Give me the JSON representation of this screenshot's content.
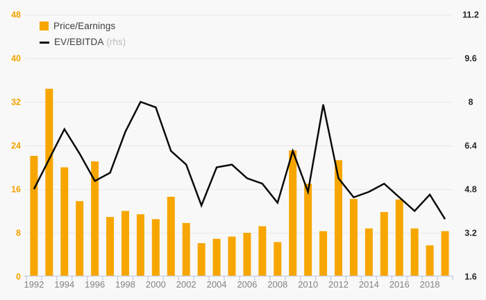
{
  "legend": {
    "items": [
      {
        "label": "Price/Earnings",
        "suffix": "",
        "swatch": "square"
      },
      {
        "label": "EV/EBITDA",
        "suffix": "(rhs)",
        "swatch": "line"
      }
    ]
  },
  "chart_data": {
    "type": "bar",
    "subtype": "bar+line dual-axis combo",
    "title": "",
    "categories": [
      "1992",
      "1993",
      "1994",
      "1995",
      "1996",
      "1997",
      "1998",
      "1999",
      "2000",
      "2001",
      "2002",
      "2003",
      "2004",
      "2005",
      "2006",
      "2007",
      "2008",
      "2009",
      "2010",
      "2011",
      "2012",
      "2013",
      "2014",
      "2015",
      "2016",
      "2017",
      "2018",
      "2019"
    ],
    "series": [
      {
        "name": "Price/Earnings",
        "type": "bar",
        "axis": "left",
        "color": "#F7A600",
        "values": [
          22.1,
          34.4,
          20.0,
          13.8,
          21.1,
          10.9,
          12.0,
          11.4,
          10.5,
          14.6,
          9.8,
          6.1,
          6.9,
          7.3,
          8.0,
          9.2,
          6.3,
          23.1,
          17.0,
          8.3,
          21.3,
          14.2,
          8.8,
          11.8,
          14.1,
          8.8,
          5.7,
          8.3
        ]
      },
      {
        "name": "EV/EBITDA (rhs)",
        "type": "line",
        "axis": "right",
        "color": "#0a0a0a",
        "values": [
          4.8,
          5.9,
          7.0,
          6.1,
          5.1,
          5.4,
          6.9,
          8.0,
          7.8,
          6.2,
          5.7,
          4.2,
          5.6,
          5.7,
          5.2,
          5.0,
          4.3,
          6.2,
          4.7,
          7.9,
          5.2,
          4.5,
          4.7,
          5.0,
          4.5,
          4.0,
          4.6,
          3.7
        ]
      }
    ],
    "left_axis": {
      "ticks": [
        0,
        8,
        16,
        24,
        32,
        40,
        48
      ],
      "range": [
        0,
        48
      ],
      "label_color": "#F5A200"
    },
    "right_axis": {
      "ticks": [
        1.6,
        3.2,
        4.8,
        6.4,
        8,
        9.6,
        11.2
      ],
      "range": [
        1.6,
        11.2
      ],
      "label_color": "#262626"
    },
    "x_axis": {
      "labels": [
        "1992",
        "1994",
        "1996",
        "1998",
        "2000",
        "2002",
        "2004",
        "2006",
        "2008",
        "2010",
        "2012",
        "2014",
        "2016",
        "2018"
      ],
      "label_color": "#818181"
    },
    "grid": true,
    "gridline_color": "#e8e8e8",
    "axis_line_color": "#c7cde2",
    "legend_position": "top-left",
    "background_color": "#f8f8f8"
  }
}
